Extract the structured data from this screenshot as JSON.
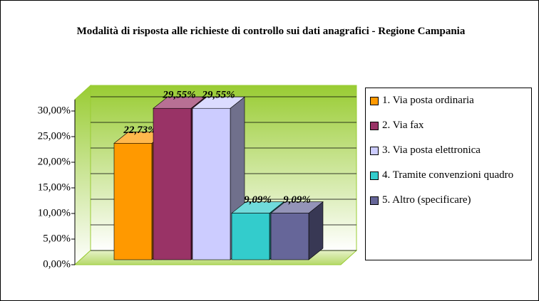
{
  "chart_data": {
    "type": "bar",
    "title": "Modalità di risposta alle richieste di controllo sui dati anagrafici - Regione Campania",
    "ylim": [
      0,
      30
    ],
    "yticks": [
      {
        "value": 0,
        "label": "0,00%"
      },
      {
        "value": 5,
        "label": "5,00%"
      },
      {
        "value": 10,
        "label": "10,00%"
      },
      {
        "value": 15,
        "label": "15,00%"
      },
      {
        "value": 20,
        "label": "20,00%"
      },
      {
        "value": 25,
        "label": "25,00%"
      },
      {
        "value": 30,
        "label": "30,00%"
      }
    ],
    "grid": true,
    "legend": "right",
    "series": [
      {
        "name": "1. Via posta ordinaria",
        "color": "#ff9900",
        "values": [
          22.73
        ],
        "value_labels": [
          "22,73%"
        ]
      },
      {
        "name": "2. Via fax",
        "color": "#993366",
        "values": [
          29.55
        ],
        "value_labels": [
          "29,55%"
        ]
      },
      {
        "name": "3. Via posta elettronica",
        "color": "#ccccff",
        "values": [
          29.55
        ],
        "value_labels": [
          "29,55%"
        ]
      },
      {
        "name": "4. Tramite convenzioni quadro",
        "color": "#33cccc",
        "values": [
          9.09
        ],
        "value_labels": [
          "9,09%"
        ]
      },
      {
        "name": "5. Altro (specificare)",
        "color": "#666699",
        "values": [
          9.09
        ],
        "value_labels": [
          "9,09%"
        ]
      }
    ]
  }
}
